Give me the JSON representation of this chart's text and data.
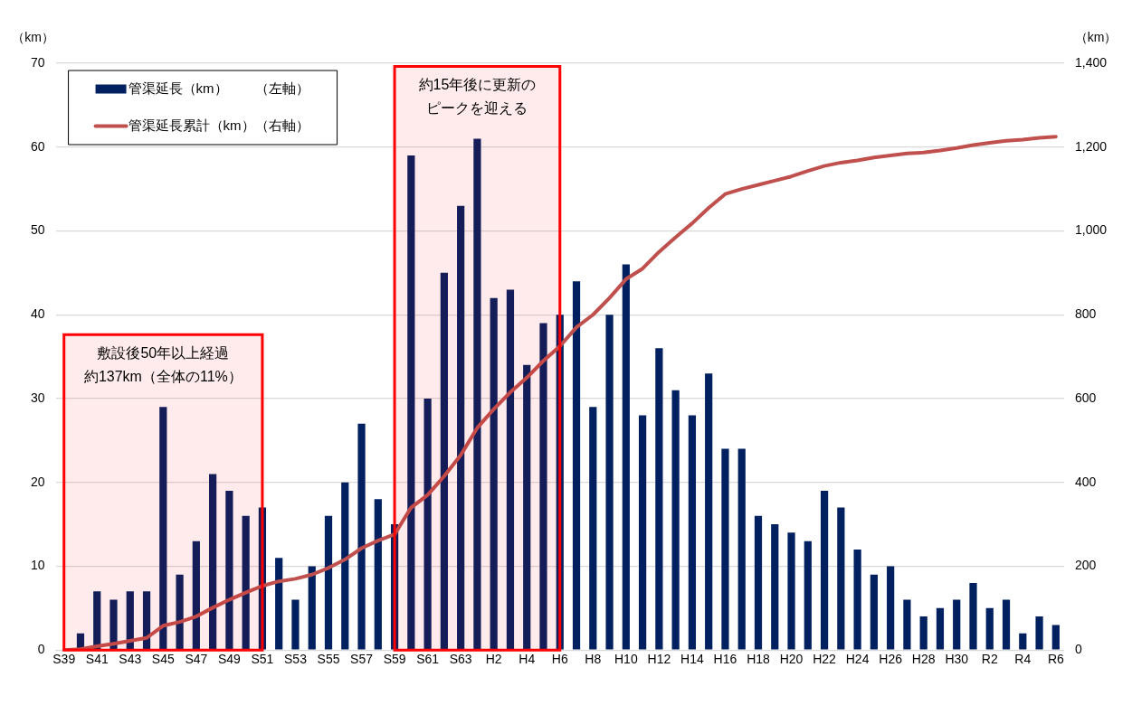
{
  "chart_data": {
    "type": "bar",
    "categories": [
      "S39",
      null,
      "S41",
      null,
      "S43",
      null,
      "S45",
      null,
      "S47",
      null,
      "S49",
      null,
      "S51",
      null,
      "S53",
      null,
      "S55",
      null,
      "S57",
      null,
      "S59",
      null,
      "S61",
      null,
      "S63",
      null,
      "H2",
      null,
      "H4",
      null,
      "H6",
      null,
      "H8",
      null,
      "H10",
      null,
      "H12",
      null,
      "H14",
      null,
      "H16",
      null,
      "H18",
      null,
      "H20",
      null,
      "H22",
      null,
      "H24",
      null,
      "H26",
      null,
      "H28",
      null,
      "H30",
      null,
      "R2",
      null,
      "R4",
      null,
      "R6"
    ],
    "series": [
      {
        "name": "管渠延長（km）　　（左軸）",
        "type": "bar",
        "color": "#002060",
        "values": [
          0,
          2,
          7,
          6,
          7,
          7,
          29,
          9,
          13,
          21,
          19,
          16,
          17,
          11,
          6,
          10,
          16,
          20,
          27,
          18,
          15,
          59,
          30,
          45,
          53,
          61,
          42,
          43,
          34,
          39,
          40,
          44,
          29,
          40,
          46,
          28,
          36,
          31,
          28,
          33,
          24,
          24,
          16,
          15,
          14,
          13,
          19,
          17,
          12,
          9,
          10,
          6,
          4,
          5,
          6,
          8,
          5,
          6,
          2,
          4,
          3
        ]
      },
      {
        "name": "管渠延長累計（km）（右軸）",
        "type": "line",
        "axis": "y2",
        "color": "#c0504d",
        "values": [
          0,
          2,
          9,
          15,
          22,
          29,
          58,
          67,
          80,
          101,
          120,
          137,
          153,
          164,
          170,
          180,
          196,
          216,
          243,
          261,
          276,
          340,
          370,
          415,
          465,
          530,
          575,
          615,
          650,
          690,
          725,
          770,
          800,
          840,
          885,
          910,
          950,
          985,
          1018,
          1055,
          1088,
          1100,
          1110,
          1120,
          1130,
          1143,
          1155,
          1163,
          1168,
          1175,
          1180,
          1185,
          1187,
          1192,
          1198,
          1205,
          1210,
          1215,
          1218,
          1222,
          1225
        ]
      }
    ],
    "ylabel": "（km）",
    "y2label": "（km）",
    "ylim": [
      0,
      70
    ],
    "yticks": [
      0,
      10,
      20,
      30,
      40,
      50,
      60,
      70
    ],
    "y2lim": [
      0,
      1400
    ],
    "y2ticks": [
      0,
      200,
      400,
      600,
      800,
      {
        "value": 1000,
        "label": "1,000"
      },
      {
        "value": 1200,
        "label": "1,200"
      },
      {
        "value": 1400,
        "label": "1,400"
      }
    ],
    "grid": "y",
    "legend": "top left",
    "marker": "none",
    "bands": [
      {
        "axis": "x",
        "from": "S39",
        "to": "S51",
        "label": "敷設後50年以上経過約137km（全体の11%）",
        "color": "#ff0000"
      },
      {
        "axis": "x",
        "from": "S59",
        "to": "H6",
        "label": "約15年後に更新のピークを迎える",
        "color": "#ff0000"
      }
    ]
  }
}
